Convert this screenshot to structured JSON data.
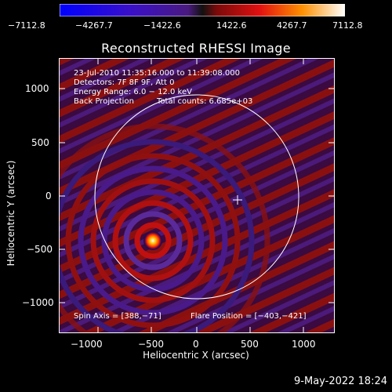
{
  "colorbar": {
    "tick_labels": [
      "−7112.8",
      "−4267.7",
      "−1422.6",
      "1422.6",
      "4267.7",
      "7112.8"
    ]
  },
  "plot": {
    "title": "Reconstructed RHESSI Image",
    "annotations": {
      "time_range": "23-Jul-2010 11:35:16.000 to 11:39:08.000",
      "detectors": "Detectors: 7F 8F 9F, Att 0",
      "energy_range": "Energy Range: 6.0 − 12.0 keV",
      "method": "Back Projection",
      "total_counts": "Total counts: 6.685e+03",
      "spin_axis": "Spin Axis = [388,−71]",
      "flare_position": "Flare Position = [−403,−421]"
    },
    "x_label": "Heliocentric X (arcsec)",
    "y_label": "Heliocentric Y (arcsec)",
    "x_ticks": [
      "−1000",
      "−500",
      "0",
      "500",
      "1000"
    ],
    "y_ticks": [
      "1000",
      "500",
      "0",
      "−500",
      "−1000"
    ]
  },
  "footer": {
    "date": "9-May-2022 18:24"
  }
}
